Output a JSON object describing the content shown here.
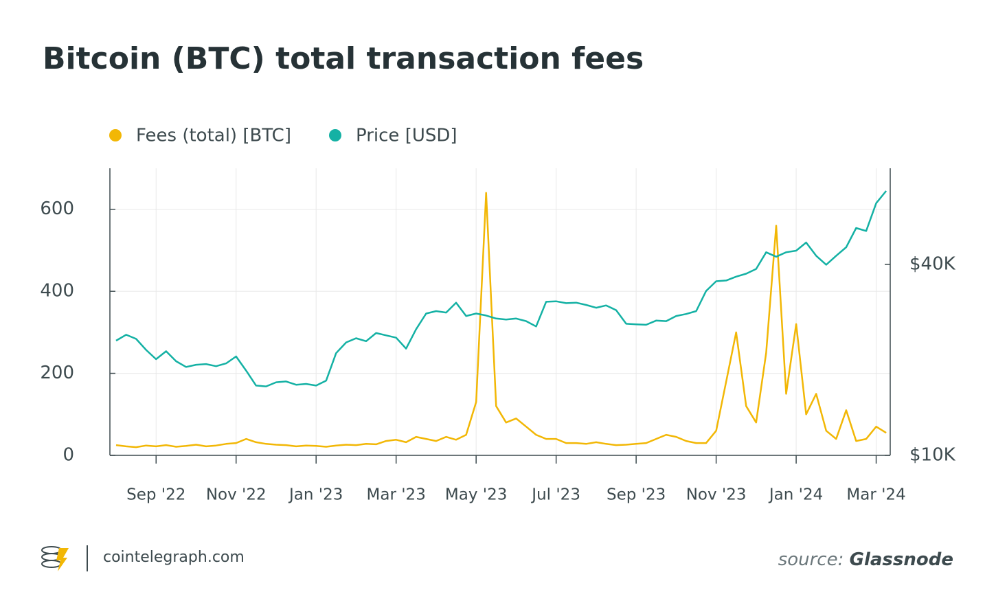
{
  "chart_data": {
    "type": "line",
    "title": "Bitcoin (BTC) total transaction fees",
    "categories": [
      null,
      null,
      null,
      null,
      "Sep '22",
      null,
      null,
      null,
      null,
      null,
      null,
      null,
      "Nov '22",
      null,
      null,
      null,
      null,
      null,
      null,
      null,
      "Jan '23",
      null,
      null,
      null,
      null,
      null,
      null,
      null,
      "Mar '23",
      null,
      null,
      null,
      null,
      null,
      null,
      null,
      "May '23",
      null,
      null,
      null,
      null,
      null,
      null,
      null,
      "Jul '23",
      null,
      null,
      null,
      null,
      null,
      null,
      null,
      "Sep '23",
      null,
      null,
      null,
      null,
      null,
      null,
      null,
      "Nov '23",
      null,
      null,
      null,
      null,
      null,
      null,
      null,
      "Jan '24",
      null,
      null,
      null,
      null,
      null,
      null,
      null,
      "Mar '24",
      null
    ],
    "series": [
      {
        "name": "Fees (total) [BTC]",
        "color": "#f2b705",
        "values": [
          25,
          22,
          20,
          24,
          22,
          25,
          21,
          23,
          26,
          22,
          24,
          28,
          30,
          40,
          32,
          28,
          26,
          25,
          22,
          24,
          23,
          21,
          24,
          26,
          25,
          28,
          27,
          35,
          38,
          32,
          45,
          40,
          35,
          45,
          38,
          50,
          130,
          640,
          120,
          80,
          90,
          70,
          50,
          40,
          40,
          30,
          30,
          28,
          32,
          28,
          25,
          26,
          28,
          30,
          40,
          50,
          45,
          35,
          30,
          30,
          60,
          180,
          300,
          120,
          80,
          250,
          560,
          150,
          320,
          100,
          150,
          60,
          40,
          110,
          35,
          40,
          70,
          55
        ]
      },
      {
        "name": "Price [USD]",
        "color": "#14b1a4",
        "axis": "y2",
        "values": [
          23000,
          24000,
          23300,
          21500,
          20100,
          21300,
          19800,
          19000,
          19300,
          19400,
          19100,
          19500,
          20500,
          18500,
          16600,
          16500,
          17000,
          17100,
          16700,
          16800,
          16600,
          17200,
          21000,
          22700,
          23400,
          22900,
          24300,
          23900,
          23500,
          21700,
          25000,
          28000,
          28500,
          28200,
          30300,
          27500,
          28000,
          27600,
          27000,
          26800,
          27000,
          26500,
          25500,
          30500,
          30600,
          30200,
          30300,
          29800,
          29200,
          29700,
          28700,
          26000,
          25900,
          25800,
          26600,
          26500,
          27500,
          27900,
          28500,
          33000,
          35400,
          35600,
          36600,
          37400,
          38700,
          43700,
          42300,
          43700,
          44200,
          46900,
          42600,
          39900,
          42600,
          45300,
          52100,
          51000,
          62400,
          68200
        ]
      }
    ],
    "ylim": [
      0,
      700
    ],
    "yticks": [
      0,
      200,
      400,
      600
    ],
    "y2lim": [
      10000,
      80400
    ],
    "y2log": true,
    "y2ticks": [
      {
        "value": 10000,
        "label": "$10K"
      },
      {
        "value": 40000,
        "label": "$40K"
      }
    ],
    "grid": true
  },
  "footer": {
    "brand": "cointelegraph.com",
    "source_label": "source:",
    "source_name": "Glassnode"
  }
}
